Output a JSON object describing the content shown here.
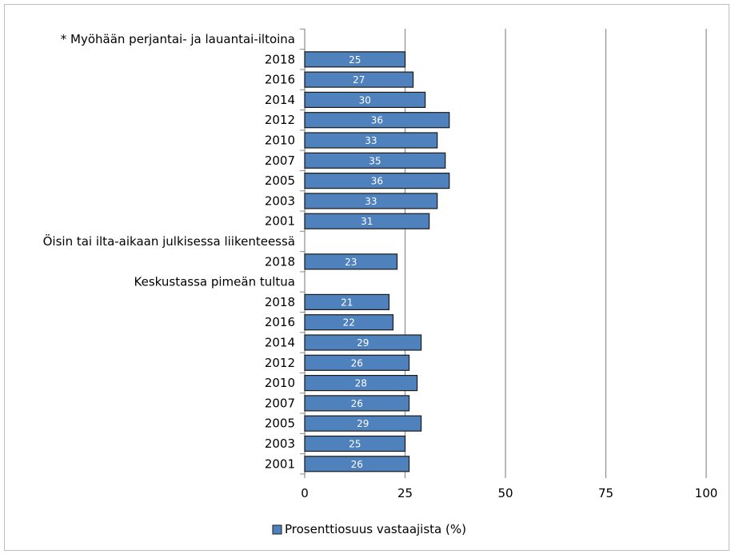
{
  "chart_data": {
    "type": "bar",
    "orientation": "horizontal",
    "categories": [
      "* Myöhään perjantai- ja lauantai-iltoina",
      "2018",
      "2016",
      "2014",
      "2012",
      "2010",
      "2007",
      "2005",
      "2003",
      "2001",
      "Öisin tai ilta-aikaan julkisessa liikenteessä",
      "2018",
      "Keskustassa pimeän tultua",
      "2018",
      "2016",
      "2014",
      "2012",
      "2010",
      "2007",
      "2005",
      "2003",
      "2001"
    ],
    "series": [
      {
        "name": "Prosenttiosuus vastaajista (%)",
        "values": [
          null,
          25,
          27,
          30,
          36,
          33,
          35,
          36,
          33,
          31,
          null,
          23,
          null,
          21,
          22,
          29,
          26,
          28,
          26,
          29,
          25,
          26
        ],
        "labels": [
          "",
          "25",
          "27",
          "30",
          "36",
          "33",
          "35",
          "36",
          "33",
          "31",
          "",
          "23",
          "",
          "21",
          "22",
          "29",
          "26",
          "28",
          "26",
          "29",
          "25",
          "26"
        ]
      }
    ],
    "xlim": [
      0,
      100
    ],
    "xticks": [
      "0",
      "25",
      "50",
      "75",
      "100"
    ],
    "xtick_values": [
      0,
      25,
      50,
      75,
      100
    ],
    "grid": true,
    "legend_position": "bottom",
    "colors": {
      "bar_fill": "#4f81bd",
      "bar_stroke": "#1a1a1a",
      "grid": "#8c8c8c"
    }
  }
}
